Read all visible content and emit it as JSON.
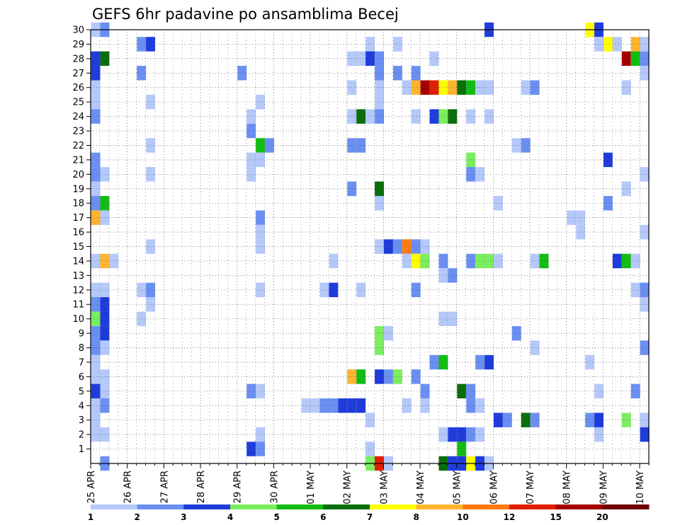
{
  "chart_data": {
    "type": "heatmap",
    "title": "GEFS 6hr padavine po ansamblima Becej",
    "xlabel": "",
    "ylabel": "",
    "x_tick_labels": [
      "25 APR",
      "26 APR",
      "27 APR",
      "28 APR",
      "29 APR",
      "30 APR",
      "01 MAY",
      "02 MAY",
      "03 MAY",
      "04 MAY",
      "05 MAY",
      "06 MAY",
      "07 MAY",
      "08 MAY",
      "09 MAY",
      "10 MAY"
    ],
    "y_tick_labels": [
      "1",
      "2",
      "3",
      "4",
      "5",
      "6",
      "7",
      "8",
      "9",
      "10",
      "11",
      "12",
      "13",
      "14",
      "15",
      "16",
      "17",
      "18",
      "19",
      "20",
      "21",
      "22",
      "23",
      "24",
      "25",
      "26",
      "27",
      "28",
      "29",
      "30"
    ],
    "x_unit": "6-hour steps from 25 APR 00Z",
    "x_range": [
      0,
      61
    ],
    "y_range": [
      0,
      30
    ],
    "grid": true,
    "legend_position": "bottom",
    "levels": [
      "1",
      "2",
      "3",
      "4",
      "5",
      "6",
      "7",
      "8",
      "10",
      "12",
      "15",
      "20"
    ],
    "colors": [
      "#b4c8fa",
      "#6a8ff2",
      "#1e3cdc",
      "#7aee5e",
      "#12bd12",
      "#0a6e0a",
      "#ffff00",
      "#ffb42e",
      "#ff7a10",
      "#e01e00",
      "#a50000",
      "#6e0000"
    ],
    "cell_columns": [
      "time_step",
      "ensemble_member",
      "color_class"
    ],
    "cells": [
      [
        0,
        30,
        0
      ],
      [
        1,
        30,
        1
      ],
      [
        54,
        30,
        6
      ],
      [
        55,
        30,
        2
      ],
      [
        43,
        30,
        2
      ],
      [
        5,
        29,
        1
      ],
      [
        6,
        29,
        2
      ],
      [
        30,
        29,
        0
      ],
      [
        33,
        29,
        0
      ],
      [
        55,
        29,
        0
      ],
      [
        56,
        29,
        6
      ],
      [
        57,
        29,
        0
      ],
      [
        59,
        29,
        7
      ],
      [
        60,
        29,
        0
      ],
      [
        0,
        28,
        2
      ],
      [
        1,
        28,
        5
      ],
      [
        28,
        28,
        0
      ],
      [
        29,
        28,
        0
      ],
      [
        30,
        28,
        2
      ],
      [
        31,
        28,
        1
      ],
      [
        37,
        28,
        0
      ],
      [
        58,
        28,
        10
      ],
      [
        59,
        28,
        4
      ],
      [
        60,
        28,
        1
      ],
      [
        0,
        27,
        2
      ],
      [
        5,
        27,
        1
      ],
      [
        16,
        27,
        1
      ],
      [
        31,
        27,
        1
      ],
      [
        33,
        27,
        1
      ],
      [
        35,
        27,
        1
      ],
      [
        60,
        27,
        0
      ],
      [
        0,
        26,
        0
      ],
      [
        28,
        26,
        0
      ],
      [
        31,
        26,
        0
      ],
      [
        34,
        26,
        0
      ],
      [
        35,
        26,
        7
      ],
      [
        36,
        26,
        10
      ],
      [
        37,
        26,
        9
      ],
      [
        38,
        26,
        6
      ],
      [
        39,
        26,
        7
      ],
      [
        40,
        26,
        5
      ],
      [
        41,
        26,
        4
      ],
      [
        42,
        26,
        0
      ],
      [
        43,
        26,
        0
      ],
      [
        47,
        26,
        0
      ],
      [
        48,
        26,
        1
      ],
      [
        58,
        26,
        0
      ],
      [
        0,
        25,
        0
      ],
      [
        6,
        25,
        0
      ],
      [
        18,
        25,
        0
      ],
      [
        31,
        25,
        0
      ],
      [
        0,
        24,
        1
      ],
      [
        17,
        24,
        0
      ],
      [
        28,
        24,
        0
      ],
      [
        29,
        24,
        5
      ],
      [
        30,
        24,
        0
      ],
      [
        31,
        24,
        1
      ],
      [
        35,
        24,
        0
      ],
      [
        37,
        24,
        2
      ],
      [
        38,
        24,
        3
      ],
      [
        39,
        24,
        5
      ],
      [
        41,
        24,
        0
      ],
      [
        43,
        24,
        0
      ],
      [
        17,
        23,
        1
      ],
      [
        6,
        22,
        0
      ],
      [
        18,
        22,
        4
      ],
      [
        19,
        22,
        1
      ],
      [
        28,
        22,
        1
      ],
      [
        29,
        22,
        1
      ],
      [
        46,
        22,
        0
      ],
      [
        47,
        22,
        1
      ],
      [
        0,
        21,
        1
      ],
      [
        17,
        21,
        0
      ],
      [
        18,
        21,
        0
      ],
      [
        41,
        21,
        3
      ],
      [
        56,
        21,
        2
      ],
      [
        0,
        20,
        1
      ],
      [
        1,
        20,
        0
      ],
      [
        6,
        20,
        0
      ],
      [
        17,
        20,
        0
      ],
      [
        41,
        20,
        1
      ],
      [
        42,
        20,
        0
      ],
      [
        60,
        20,
        0
      ],
      [
        0,
        19,
        0
      ],
      [
        28,
        19,
        1
      ],
      [
        31,
        19,
        5
      ],
      [
        58,
        19,
        0
      ],
      [
        0,
        18,
        1
      ],
      [
        1,
        18,
        4
      ],
      [
        31,
        18,
        0
      ],
      [
        44,
        18,
        0
      ],
      [
        56,
        18,
        1
      ],
      [
        0,
        17,
        7
      ],
      [
        1,
        17,
        0
      ],
      [
        18,
        17,
        1
      ],
      [
        52,
        17,
        0
      ],
      [
        53,
        17,
        0
      ],
      [
        18,
        16,
        0
      ],
      [
        60,
        16,
        0
      ],
      [
        53,
        16,
        0
      ],
      [
        6,
        15,
        0
      ],
      [
        18,
        15,
        0
      ],
      [
        31,
        15,
        0
      ],
      [
        32,
        15,
        2
      ],
      [
        33,
        15,
        1
      ],
      [
        34,
        15,
        8
      ],
      [
        35,
        15,
        1
      ],
      [
        36,
        15,
        0
      ],
      [
        0,
        14,
        0
      ],
      [
        1,
        14,
        7
      ],
      [
        2,
        14,
        0
      ],
      [
        26,
        14,
        0
      ],
      [
        34,
        14,
        0
      ],
      [
        35,
        14,
        6
      ],
      [
        36,
        14,
        3
      ],
      [
        38,
        14,
        1
      ],
      [
        41,
        14,
        1
      ],
      [
        42,
        14,
        3
      ],
      [
        43,
        14,
        3
      ],
      [
        44,
        14,
        0
      ],
      [
        48,
        14,
        0
      ],
      [
        49,
        14,
        4
      ],
      [
        57,
        14,
        2
      ],
      [
        58,
        14,
        4
      ],
      [
        59,
        14,
        0
      ],
      [
        38,
        13,
        0
      ],
      [
        39,
        13,
        1
      ],
      [
        0,
        12,
        0
      ],
      [
        1,
        12,
        0
      ],
      [
        5,
        12,
        0
      ],
      [
        6,
        12,
        1
      ],
      [
        18,
        12,
        0
      ],
      [
        25,
        12,
        0
      ],
      [
        26,
        12,
        2
      ],
      [
        29,
        12,
        0
      ],
      [
        35,
        12,
        1
      ],
      [
        59,
        12,
        0
      ],
      [
        60,
        12,
        1
      ],
      [
        0,
        11,
        1
      ],
      [
        1,
        11,
        2
      ],
      [
        6,
        11,
        0
      ],
      [
        60,
        11,
        0
      ],
      [
        0,
        10,
        3
      ],
      [
        1,
        10,
        2
      ],
      [
        5,
        10,
        0
      ],
      [
        38,
        10,
        0
      ],
      [
        39,
        10,
        0
      ],
      [
        0,
        9,
        1
      ],
      [
        1,
        9,
        2
      ],
      [
        31,
        9,
        3
      ],
      [
        32,
        9,
        0
      ],
      [
        46,
        9,
        1
      ],
      [
        0,
        8,
        1
      ],
      [
        1,
        8,
        0
      ],
      [
        31,
        8,
        3
      ],
      [
        48,
        8,
        0
      ],
      [
        60,
        8,
        1
      ],
      [
        0,
        7,
        0
      ],
      [
        37,
        7,
        1
      ],
      [
        38,
        7,
        4
      ],
      [
        42,
        7,
        1
      ],
      [
        43,
        7,
        2
      ],
      [
        54,
        7,
        0
      ],
      [
        0,
        6,
        0
      ],
      [
        1,
        6,
        0
      ],
      [
        28,
        6,
        7
      ],
      [
        29,
        6,
        4
      ],
      [
        31,
        6,
        2
      ],
      [
        32,
        6,
        1
      ],
      [
        33,
        6,
        3
      ],
      [
        35,
        6,
        1
      ],
      [
        0,
        5,
        2
      ],
      [
        1,
        5,
        0
      ],
      [
        17,
        5,
        1
      ],
      [
        18,
        5,
        0
      ],
      [
        36,
        5,
        1
      ],
      [
        40,
        5,
        5
      ],
      [
        41,
        5,
        1
      ],
      [
        55,
        5,
        0
      ],
      [
        59,
        5,
        1
      ],
      [
        0,
        4,
        0
      ],
      [
        1,
        4,
        1
      ],
      [
        23,
        4,
        0
      ],
      [
        24,
        4,
        0
      ],
      [
        25,
        4,
        1
      ],
      [
        26,
        4,
        1
      ],
      [
        27,
        4,
        2
      ],
      [
        28,
        4,
        2
      ],
      [
        29,
        4,
        2
      ],
      [
        34,
        4,
        0
      ],
      [
        36,
        4,
        0
      ],
      [
        41,
        4,
        1
      ],
      [
        42,
        4,
        0
      ],
      [
        0,
        3,
        0
      ],
      [
        30,
        3,
        0
      ],
      [
        44,
        3,
        2
      ],
      [
        45,
        3,
        1
      ],
      [
        47,
        3,
        5
      ],
      [
        48,
        3,
        1
      ],
      [
        54,
        3,
        1
      ],
      [
        55,
        3,
        2
      ],
      [
        58,
        3,
        3
      ],
      [
        60,
        3,
        0
      ],
      [
        0,
        2,
        0
      ],
      [
        1,
        2,
        0
      ],
      [
        18,
        2,
        0
      ],
      [
        38,
        2,
        0
      ],
      [
        39,
        2,
        2
      ],
      [
        40,
        2,
        2
      ],
      [
        41,
        2,
        1
      ],
      [
        42,
        2,
        0
      ],
      [
        55,
        2,
        0
      ],
      [
        60,
        2,
        2
      ],
      [
        17,
        1,
        2
      ],
      [
        18,
        1,
        1
      ],
      [
        30,
        1,
        0
      ],
      [
        40,
        1,
        4
      ],
      [
        1,
        0,
        1
      ],
      [
        30,
        0,
        3
      ],
      [
        31,
        0,
        9
      ],
      [
        32,
        0,
        0
      ],
      [
        38,
        0,
        5
      ],
      [
        39,
        0,
        2
      ],
      [
        40,
        0,
        2
      ],
      [
        41,
        0,
        6
      ],
      [
        42,
        0,
        2
      ],
      [
        43,
        0,
        0
      ]
    ]
  }
}
